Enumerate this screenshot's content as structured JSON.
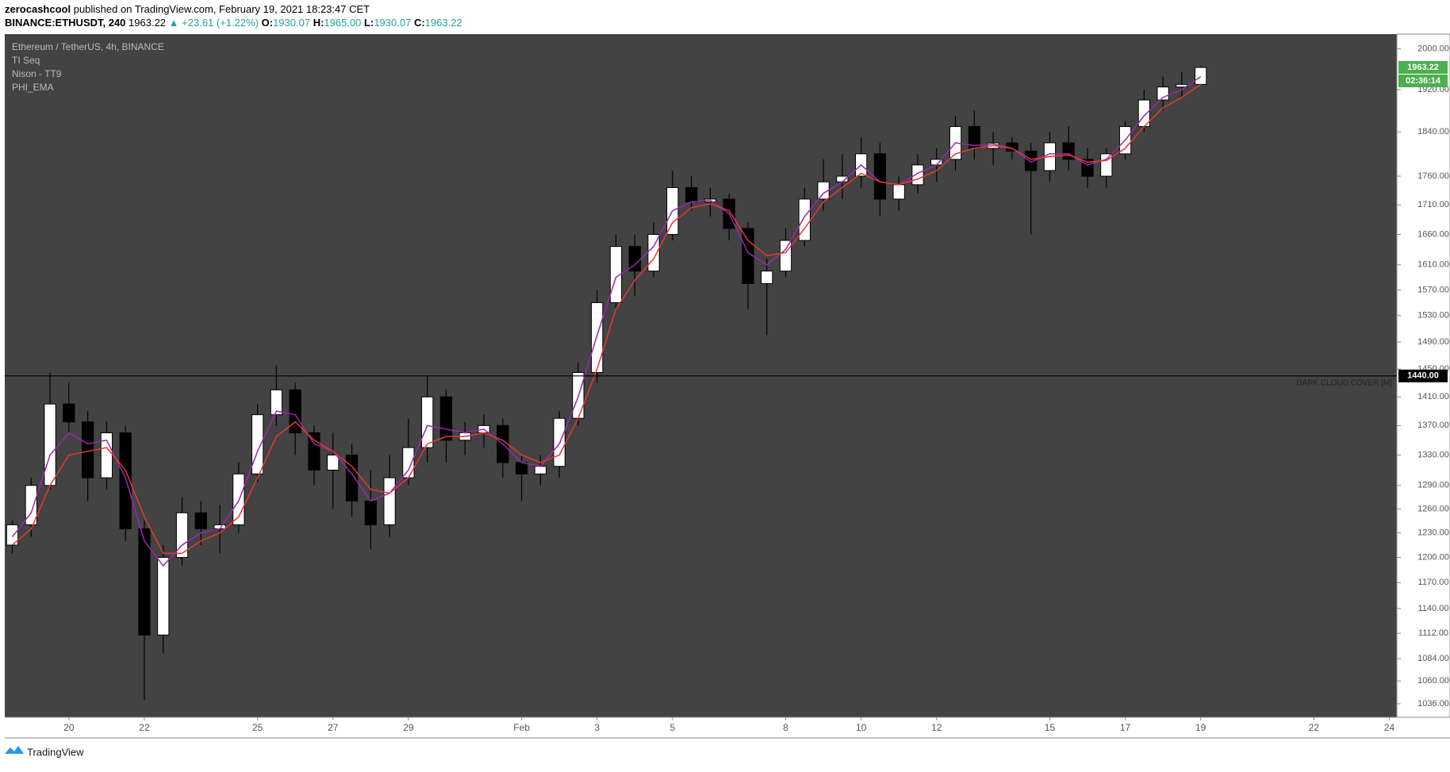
{
  "header": {
    "author": "zerocashcool",
    "published": "published on TradingView.com, February 19, 2021 18:23:47 CET",
    "symbol": "BINANCE:ETHUSDT, 240",
    "last": "1963.22",
    "change": "▲ +23.61 (+1.22%)",
    "ohlc": [
      {
        "label": "O:",
        "value": "1930.07"
      },
      {
        "label": "H:",
        "value": "1965.00"
      },
      {
        "label": "L:",
        "value": "1930.07"
      },
      {
        "label": "C:",
        "value": "1963.22"
      }
    ]
  },
  "footer": {
    "brand": "TradingView"
  },
  "chart_data": {
    "type": "candlestick",
    "legend": [
      "Ethereum / TetherUS, 4h, BINANCE",
      "TI Seq",
      "Nison - TT9",
      "PHI_EMA"
    ],
    "log_scale": true,
    "grid": false,
    "up_color": "#ffffff",
    "down_color": "#000000",
    "x": [
      18.5,
      19,
      19.5,
      20,
      20.5,
      21,
      21.5,
      22,
      22.5,
      23,
      23.5,
      24,
      24.5,
      25,
      25.5,
      26,
      26.5,
      27,
      27.5,
      28,
      28.5,
      29,
      29.5,
      30,
      30.5,
      31,
      31.5,
      32,
      32.5,
      33,
      33.5,
      34,
      34.5,
      35,
      35.5,
      36,
      36.5,
      37,
      37.5,
      38,
      38.5,
      39,
      39.5,
      40,
      40.5,
      41,
      41.5,
      42,
      42.5,
      43,
      43.5,
      44,
      44.5,
      45,
      45.5,
      46,
      46.5,
      47,
      47.5,
      48,
      48.5,
      49,
      49.5,
      50
    ],
    "open": [
      1215,
      1240,
      1290,
      1400,
      1375,
      1300,
      1360,
      1235,
      1110,
      1200,
      1255,
      1235,
      1240,
      1305,
      1385,
      1420,
      1360,
      1310,
      1330,
      1270,
      1240,
      1300,
      1340,
      1410,
      1350,
      1360,
      1370,
      1320,
      1305,
      1315,
      1380,
      1445,
      1550,
      1640,
      1600,
      1660,
      1740,
      1715,
      1720,
      1670,
      1580,
      1600,
      1650,
      1720,
      1750,
      1760,
      1800,
      1720,
      1745,
      1780,
      1790,
      1850,
      1810,
      1820,
      1805,
      1770,
      1820,
      1790,
      1760,
      1800,
      1850,
      1900,
      1925,
      1930.07
    ],
    "high": [
      1245,
      1300,
      1445,
      1430,
      1390,
      1375,
      1370,
      1245,
      1215,
      1275,
      1270,
      1265,
      1320,
      1400,
      1455,
      1430,
      1370,
      1360,
      1345,
      1310,
      1330,
      1380,
      1440,
      1420,
      1375,
      1385,
      1380,
      1330,
      1330,
      1390,
      1460,
      1570,
      1660,
      1660,
      1680,
      1770,
      1760,
      1740,
      1730,
      1680,
      1620,
      1670,
      1740,
      1790,
      1800,
      1830,
      1820,
      1760,
      1800,
      1810,
      1870,
      1880,
      1840,
      1830,
      1820,
      1840,
      1850,
      1810,
      1810,
      1860,
      1920,
      1945,
      1955,
      1965
    ],
    "low": [
      1205,
      1225,
      1285,
      1360,
      1270,
      1285,
      1220,
      1040,
      1090,
      1190,
      1215,
      1205,
      1230,
      1295,
      1370,
      1330,
      1290,
      1260,
      1250,
      1210,
      1225,
      1290,
      1320,
      1320,
      1330,
      1340,
      1300,
      1270,
      1290,
      1300,
      1370,
      1430,
      1540,
      1560,
      1590,
      1650,
      1700,
      1690,
      1650,
      1540,
      1500,
      1590,
      1640,
      1700,
      1720,
      1740,
      1690,
      1700,
      1730,
      1750,
      1770,
      1790,
      1780,
      1790,
      1660,
      1750,
      1770,
      1740,
      1740,
      1790,
      1840,
      1880,
      1905,
      1930.07
    ],
    "close": [
      1240,
      1290,
      1400,
      1375,
      1300,
      1360,
      1235,
      1110,
      1200,
      1255,
      1235,
      1240,
      1305,
      1385,
      1420,
      1360,
      1310,
      1330,
      1270,
      1240,
      1300,
      1340,
      1410,
      1350,
      1360,
      1370,
      1320,
      1305,
      1315,
      1380,
      1445,
      1550,
      1640,
      1600,
      1660,
      1740,
      1715,
      1720,
      1670,
      1580,
      1600,
      1650,
      1720,
      1750,
      1760,
      1800,
      1720,
      1745,
      1780,
      1790,
      1850,
      1810,
      1820,
      1805,
      1770,
      1820,
      1790,
      1760,
      1800,
      1850,
      1900,
      1925,
      1930,
      1963.22
    ],
    "lines": [
      {
        "color": "#9c27b0",
        "values": [
          1225,
          1255,
          1330,
          1360,
          1345,
          1350,
          1300,
          1220,
          1190,
          1215,
          1230,
          1235,
          1270,
          1335,
          1390,
          1385,
          1345,
          1335,
          1305,
          1270,
          1280,
          1310,
          1370,
          1365,
          1360,
          1365,
          1345,
          1320,
          1315,
          1345,
          1410,
          1500,
          1590,
          1610,
          1640,
          1700,
          1715,
          1718,
          1695,
          1630,
          1610,
          1635,
          1690,
          1730,
          1750,
          1780,
          1750,
          1745,
          1765,
          1780,
          1820,
          1815,
          1818,
          1810,
          1785,
          1800,
          1800,
          1780,
          1790,
          1825,
          1870,
          1905,
          1920,
          1945
        ]
      },
      {
        "color": "#e53935",
        "values": [
          1215,
          1235,
          1290,
          1330,
          1335,
          1340,
          1310,
          1250,
          1205,
          1205,
          1220,
          1230,
          1250,
          1300,
          1355,
          1375,
          1350,
          1335,
          1315,
          1285,
          1280,
          1300,
          1345,
          1355,
          1355,
          1360,
          1350,
          1330,
          1320,
          1330,
          1380,
          1450,
          1540,
          1585,
          1620,
          1680,
          1705,
          1712,
          1700,
          1650,
          1625,
          1630,
          1670,
          1715,
          1740,
          1765,
          1750,
          1745,
          1755,
          1770,
          1800,
          1810,
          1815,
          1810,
          1790,
          1795,
          1798,
          1785,
          1788,
          1810,
          1850,
          1885,
          1905,
          1930
        ]
      }
    ],
    "hline": {
      "value": 1440,
      "label": "1440.00",
      "name": "DARK CLOUD COVER [M]"
    },
    "last_price": {
      "value": 1963.22,
      "label": "1963.22",
      "countdown": "02:36:14"
    },
    "xlim": [
      18.3,
      55.2
    ],
    "xticks": [
      20,
      22,
      25,
      27,
      29,
      {
        "value": 32,
        "label": "Feb"
      },
      {
        "value": 34,
        "label": "3"
      },
      {
        "value": 36,
        "label": "5"
      },
      {
        "value": 39,
        "label": "8"
      },
      {
        "value": 41,
        "label": "10"
      },
      {
        "value": 43,
        "label": "12"
      },
      {
        "value": 46,
        "label": "15"
      },
      {
        "value": 48,
        "label": "17"
      },
      {
        "value": 50,
        "label": "19"
      },
      {
        "value": 53,
        "label": "22"
      },
      {
        "value": 55,
        "label": "24"
      }
    ],
    "ylim": [
      1022,
      2030
    ],
    "yticks": [
      {
        "value": 2000,
        "label": "2000.00"
      },
      {
        "value": 1920,
        "label": "1920.00"
      },
      {
        "value": 1840,
        "label": "1840.00"
      },
      {
        "value": 1760,
        "label": "1760.00"
      },
      {
        "value": 1710,
        "label": "1710.00"
      },
      {
        "value": 1660,
        "label": "1660.00"
      },
      {
        "value": 1610,
        "label": "1610.00"
      },
      {
        "value": 1570,
        "label": "1570.00"
      },
      {
        "value": 1530,
        "label": "1530.00"
      },
      {
        "value": 1490,
        "label": "1490.00"
      },
      {
        "value": 1450,
        "label": "1450.00"
      },
      {
        "value": 1410,
        "label": "1410.00"
      },
      {
        "value": 1370,
        "label": "1370.00"
      },
      {
        "value": 1330,
        "label": "1330.00"
      },
      {
        "value": 1290,
        "label": "1290.00"
      },
      {
        "value": 1260,
        "label": "1260.00"
      },
      {
        "value": 1230,
        "label": "1230.00"
      },
      {
        "value": 1200,
        "label": "1200.00"
      },
      {
        "value": 1170,
        "label": "1170.00"
      },
      {
        "value": 1140,
        "label": "1140.00"
      },
      {
        "value": 1112,
        "label": "1112.00"
      },
      {
        "value": 1084,
        "label": "1084.00"
      },
      {
        "value": 1060,
        "label": "1060.00"
      },
      {
        "value": 1036,
        "label": "1036.00"
      }
    ]
  }
}
